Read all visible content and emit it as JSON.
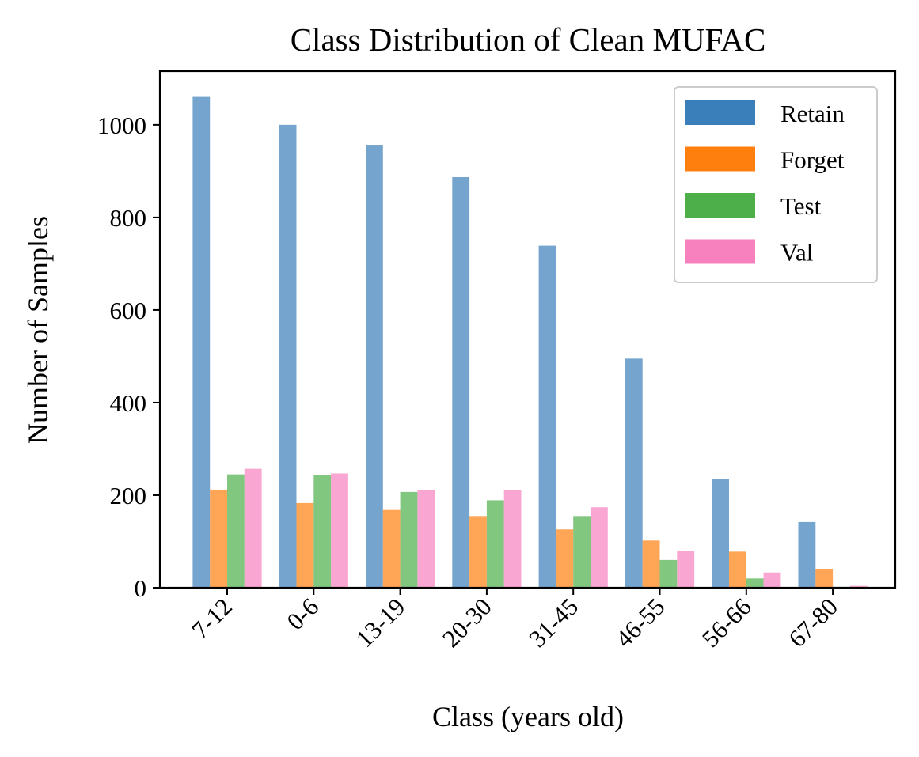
{
  "chart_data": {
    "type": "bar",
    "title": "Class Distribution of Clean MUFAC",
    "xlabel": "Class (years old)",
    "ylabel": "Number of Samples",
    "categories": [
      "7-12",
      "0-6",
      "13-19",
      "20-30",
      "31-45",
      "46-55",
      "56-66",
      "67-80"
    ],
    "yticks": [
      0,
      200,
      400,
      600,
      800,
      1000
    ],
    "ylim": [
      0,
      1116
    ],
    "grid": false,
    "legend_position": "top-right",
    "series": [
      {
        "name": "Retain",
        "color": "#3a7fba",
        "values": [
          1062,
          1000,
          957,
          887,
          739,
          495,
          235,
          142
        ]
      },
      {
        "name": "Forget",
        "color": "#ff7f0e",
        "values": [
          212,
          183,
          168,
          155,
          126,
          102,
          78,
          41
        ]
      },
      {
        "name": "Test",
        "color": "#4daf4a",
        "values": [
          245,
          243,
          207,
          189,
          155,
          60,
          20,
          2
        ]
      },
      {
        "name": "Val",
        "color": "#f781bf",
        "values": [
          257,
          247,
          211,
          211,
          174,
          80,
          33,
          4
        ]
      }
    ]
  }
}
